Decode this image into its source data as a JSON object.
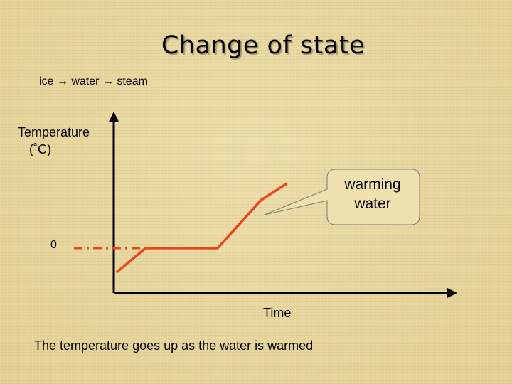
{
  "chart_data": {
    "type": "line",
    "title": "Change of state",
    "subtitle": "ice → water → steam",
    "ylabel": "Temperature",
    "yunit": "(˚C)",
    "xlabel": "Time",
    "yticks": [
      0
    ],
    "grid": false,
    "series": [
      {
        "color": "#e8471c",
        "points": [
          [
            0,
            -1.3
          ],
          [
            1,
            0
          ],
          [
            3.5,
            0
          ],
          [
            5,
            2.6
          ],
          [
            5.9,
            3.5
          ]
        ]
      }
    ],
    "reference_line": {
      "y": 0,
      "style": "dash-dot",
      "color": "#e8471c"
    },
    "annotation": {
      "text": [
        "warming",
        "water"
      ]
    },
    "caption": "The temperature goes up as the water is warmed"
  }
}
